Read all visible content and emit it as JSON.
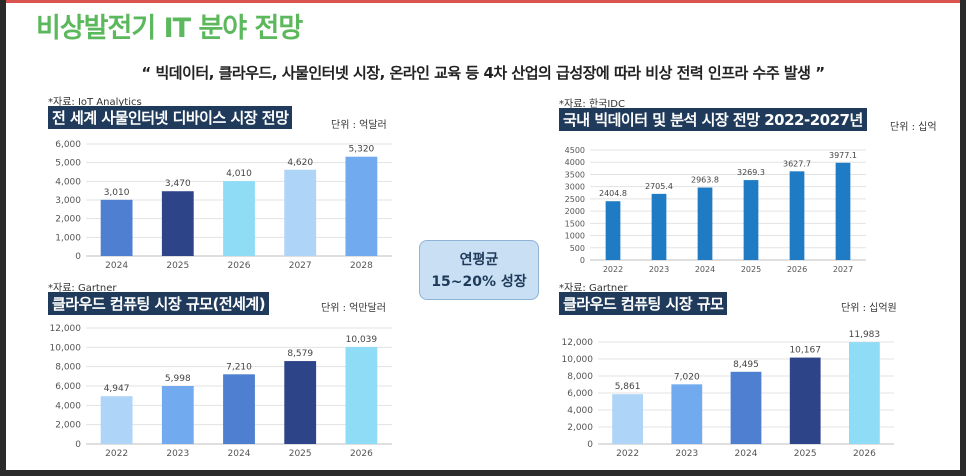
{
  "title": "비상발전기 IT 분야 전망",
  "quote": "“ 빅데이터, 클라우드, 사물인터넷 시장, 온라인 교육 등 4차 산업의 급성장에 따라 비상 전력 인프라 수주 발생 ”",
  "center_badge": {
    "line1": "연평균",
    "line2": "15~20% 성장"
  },
  "charts": [
    {
      "source": "*자료: IoT Analytics",
      "title": "전 세계 사물인터넷 디바이스 시장 전망",
      "unit": "단위 : 억달러"
    },
    {
      "source": "*자료: 한국IDC",
      "title": "국내 빅데이터 및 분석 시장 전망 2022-2027년",
      "unit": "단위 : 십억"
    },
    {
      "source": "*자료: Gartner",
      "title": "클라우드 컴퓨팅 시장 규모(전세계)",
      "unit": "단위 : 억만달러"
    },
    {
      "source": "*자료: Gartner",
      "title": "클라우드 컴퓨팅 시장 규모",
      "unit": "단위 : 십억원"
    }
  ],
  "chart_data": [
    {
      "type": "bar",
      "title": "전 세계 사물인터넷 디바이스 시장 전망",
      "categories": [
        "2024",
        "2025",
        "2026",
        "2027",
        "2028"
      ],
      "values": [
        3010,
        3470,
        4010,
        4620,
        5320
      ],
      "value_labels": [
        "3,010",
        "3,470",
        "4,010",
        "4,620",
        "5,320"
      ],
      "ylim": [
        0,
        6000
      ],
      "yticks": [
        0,
        1000,
        2000,
        3000,
        4000,
        5000,
        6000
      ],
      "ytick_labels": [
        "0",
        "1,000",
        "2,000",
        "3,000",
        "4,000",
        "5,000",
        "6,000"
      ],
      "colors": [
        "#4f7fd0",
        "#2e4489",
        "#8fdcf7",
        "#aed4f7",
        "#72aaf0"
      ],
      "grid": true
    },
    {
      "type": "bar",
      "title": "국내 빅데이터 및 분석 시장 전망 2022-2027년",
      "categories": [
        "2022",
        "2023",
        "2024",
        "2025",
        "2026",
        "2027"
      ],
      "values": [
        2404.8,
        2705.4,
        2963.8,
        3269.3,
        3627.7,
        3977.1
      ],
      "value_labels": [
        "2404.8",
        "2705.4",
        "2963.8",
        "3269.3",
        "3627.7",
        "3977.1"
      ],
      "ylim": [
        0,
        4500
      ],
      "yticks": [
        0,
        500,
        1000,
        1500,
        2000,
        2500,
        3000,
        3500,
        4000,
        4500
      ],
      "ytick_labels": [
        "0",
        "500",
        "1000",
        "1500",
        "2000",
        "2500",
        "3000",
        "3500",
        "4000",
        "4500"
      ],
      "colors": [
        "#1f7bc4",
        "#1f7bc4",
        "#1f7bc4",
        "#1f7bc4",
        "#1f7bc4",
        "#1f7bc4"
      ],
      "grid": true
    },
    {
      "type": "bar",
      "title": "클라우드 컴퓨팅 시장 규모(전세계)",
      "categories": [
        "2022",
        "2023",
        "2024",
        "2025",
        "2026"
      ],
      "values": [
        4947,
        5998,
        7210,
        8579,
        10039
      ],
      "value_labels": [
        "4,947",
        "5,998",
        "7,210",
        "8,579",
        "10,039"
      ],
      "ylim": [
        0,
        12000
      ],
      "yticks": [
        0,
        2000,
        4000,
        6000,
        8000,
        10000,
        12000
      ],
      "ytick_labels": [
        "0",
        "2,000",
        "4,000",
        "6,000",
        "8,000",
        "10,000",
        "12,000"
      ],
      "colors": [
        "#aed4f7",
        "#72aaf0",
        "#4f7fd0",
        "#2e4489",
        "#8fdcf7"
      ],
      "grid": true
    },
    {
      "type": "bar",
      "title": "클라우드 컴퓨팅 시장 규모",
      "categories": [
        "2022",
        "2023",
        "2024",
        "2025",
        "2026"
      ],
      "values": [
        5861,
        7020,
        8495,
        10167,
        11983
      ],
      "value_labels": [
        "5,861",
        "7,020",
        "8,495",
        "10,167",
        "11,983"
      ],
      "ylim": [
        0,
        12000
      ],
      "yticks": [
        0,
        2000,
        4000,
        6000,
        8000,
        10000,
        12000
      ],
      "ytick_labels": [
        "0",
        "2,000",
        "4,000",
        "6,000",
        "8,000",
        "10,000",
        "12,000"
      ],
      "colors": [
        "#aed4f7",
        "#72aaf0",
        "#4f7fd0",
        "#2e4489",
        "#8fdcf7"
      ],
      "grid": true
    }
  ]
}
